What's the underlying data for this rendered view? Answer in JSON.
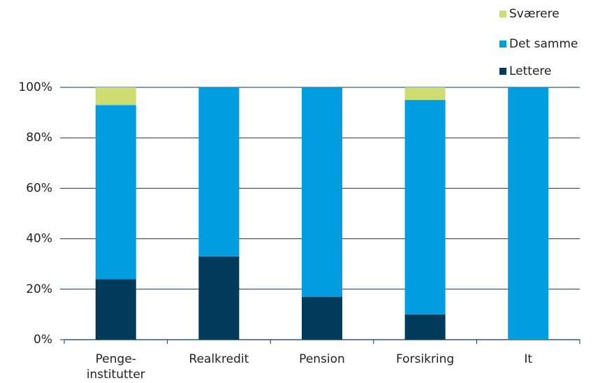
{
  "chart_data": {
    "type": "stacked_bar",
    "categories": [
      "Penge-\ninstitutter",
      "Realkredit",
      "Pension",
      "Forsikring",
      "It"
    ],
    "series": [
      {
        "name": "Lettere",
        "color": "#003b5c",
        "values": [
          24,
          33,
          17,
          10,
          0
        ]
      },
      {
        "name": "Det samme",
        "color": "#009ee0",
        "values": [
          69,
          67,
          83,
          85,
          100
        ]
      },
      {
        "name": "Sværere",
        "color": "#cfdc74",
        "values": [
          7,
          0,
          0,
          5,
          0
        ]
      }
    ],
    "ylim": [
      0,
      100
    ],
    "yticks": [
      {
        "value": 0,
        "label": "0%"
      },
      {
        "value": 20,
        "label": "20%"
      },
      {
        "value": 40,
        "label": "40%"
      },
      {
        "value": 60,
        "label": "60%"
      },
      {
        "value": 80,
        "label": "80%"
      },
      {
        "value": 100,
        "label": "100%"
      }
    ],
    "grid": true,
    "legend": "top-right"
  }
}
